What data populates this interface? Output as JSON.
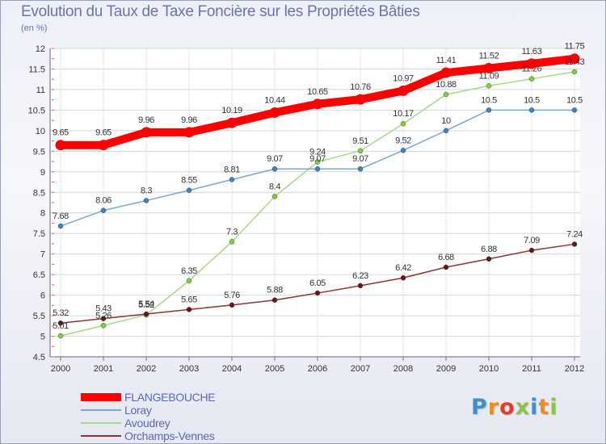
{
  "chart_data": {
    "type": "line",
    "title": "Evolution du Taux de Taxe Foncière sur les Propriétés Bâties",
    "subtitle": "(en %)",
    "x": [
      "2000",
      "2001",
      "2002",
      "2003",
      "2004",
      "2005",
      "2006",
      "2007",
      "2008",
      "2009",
      "2010",
      "2011",
      "2012"
    ],
    "ylim": [
      4.5,
      12
    ],
    "yticks": [
      4.5,
      5,
      5.5,
      6,
      6.5,
      7,
      7.5,
      8,
      8.5,
      9,
      9.5,
      10,
      10.5,
      11,
      11.5,
      12
    ],
    "ytick_labels": [
      "4.5",
      "5",
      "5.5",
      "6",
      "6.5",
      "7",
      "7.5",
      "8",
      "8.5",
      "9",
      "9.5",
      "10",
      "10.5",
      "11",
      "11.5",
      "12"
    ],
    "grid": true,
    "legend_position": "bottom-left",
    "series": [
      {
        "name": "FLANGEBOUCHE",
        "color": "#ff0000",
        "marker": "#ff0000",
        "width": 10,
        "values": [
          9.65,
          9.65,
          9.96,
          9.96,
          10.19,
          10.44,
          10.65,
          10.76,
          10.97,
          11.41,
          11.52,
          11.63,
          11.75
        ],
        "labels": [
          "9.65",
          "9.65",
          "9.96",
          "9.96",
          "10.19",
          "10.44",
          "10.65",
          "10.76",
          "10.97",
          "11.41",
          "11.52",
          "11.63",
          "11.75"
        ]
      },
      {
        "name": "Loray",
        "color": "#7ea7cc",
        "marker": "#3a85c4",
        "width": 1.5,
        "values": [
          7.68,
          8.06,
          8.3,
          8.55,
          8.81,
          9.07,
          9.07,
          9.07,
          9.52,
          10,
          10.5,
          10.5,
          10.5
        ],
        "labels": [
          "7.68",
          "8.06",
          "8.3",
          "8.55",
          "8.81",
          "9.07",
          "9.07",
          "9.07",
          "9.52",
          "10",
          "10.5",
          "10.5",
          "10.5"
        ]
      },
      {
        "name": "Avoudrey",
        "color": "#a6d98a",
        "marker": "#7fd13b",
        "width": 1.5,
        "values": [
          5.01,
          5.26,
          5.52,
          6.35,
          7.3,
          8.4,
          9.24,
          9.51,
          10.17,
          10.88,
          11.09,
          11.26,
          11.43
        ],
        "labels": [
          "5.01",
          "5.26",
          "5.52",
          "6.35",
          "7.3",
          "8.4",
          "9.24",
          "9.51",
          "10.17",
          "10.88",
          "11.09",
          "11.26",
          "11.43"
        ]
      },
      {
        "name": "Orchamps-Vennes",
        "color": "#8a3535",
        "marker": "#6b1414",
        "width": 1.5,
        "values": [
          5.32,
          5.43,
          5.54,
          5.65,
          5.76,
          5.88,
          6.05,
          6.23,
          6.42,
          6.68,
          6.88,
          7.09,
          7.24
        ],
        "labels": [
          "5.32",
          "5.43",
          "5.54",
          "5.65",
          "5.76",
          "5.88",
          "6.05",
          "6.23",
          "6.42",
          "6.68",
          "6.88",
          "7.09",
          "7.24"
        ]
      }
    ]
  },
  "logo": {
    "text": "Proxiti",
    "letters": [
      "P",
      "r",
      "o",
      "x",
      "i",
      "t",
      "i"
    ],
    "colors": [
      "#3c8fd0",
      "#f08c1c",
      "#e63a2a",
      "#8cc63f",
      "#3c8fd0",
      "#f08c1c",
      "#8cc63f"
    ]
  }
}
